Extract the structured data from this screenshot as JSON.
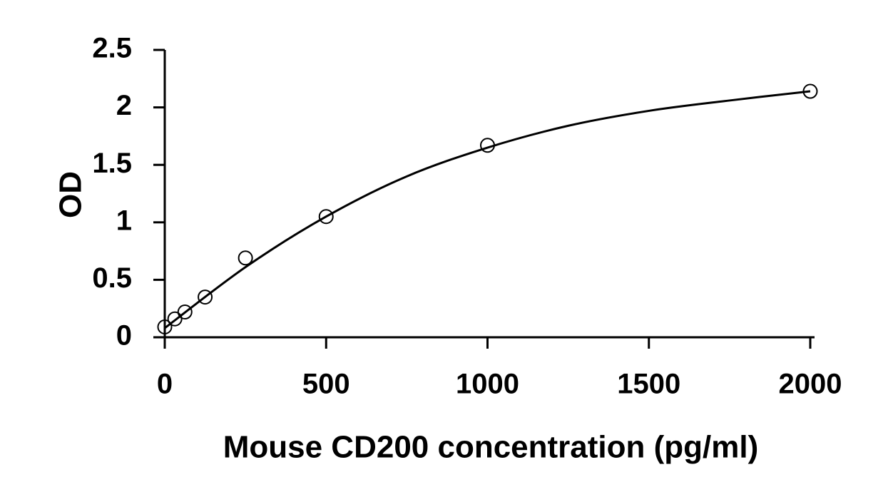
{
  "chart_data": {
    "type": "scatter",
    "title": "",
    "xlabel": "Mouse CD200 concentration (pg/ml)",
    "ylabel": "OD",
    "xlim": [
      0,
      2000
    ],
    "ylim": [
      0,
      2.5
    ],
    "x_ticks": [
      "0",
      "500",
      "1000",
      "1500",
      "2000"
    ],
    "y_ticks": [
      "0",
      "0.5",
      "1",
      "1.5",
      "2",
      "2.5"
    ],
    "grid": false,
    "legend": "none",
    "series": [
      {
        "x": [
          0,
          31.25,
          62.5,
          125,
          250,
          500,
          1000,
          2000
        ],
        "y": [
          0.09,
          0.16,
          0.22,
          0.35,
          0.69,
          1.05,
          1.67,
          2.14
        ],
        "marker": "open-circle",
        "color": "#000000"
      }
    ],
    "fit_curve": {
      "type": "smooth",
      "color": "#000000",
      "x": [
        0,
        250,
        500,
        750,
        1000,
        1250,
        1500,
        1750,
        2000
      ],
      "y": [
        0.08,
        0.61,
        1.05,
        1.4,
        1.65,
        1.84,
        1.97,
        2.06,
        2.14
      ]
    }
  }
}
